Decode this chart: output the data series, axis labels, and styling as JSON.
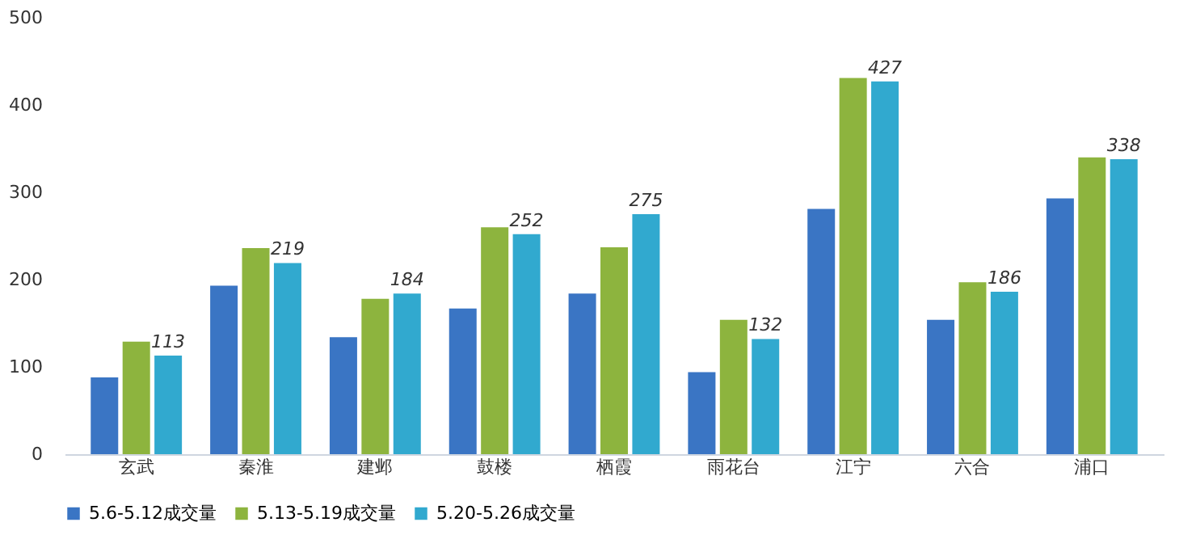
{
  "chart_data": {
    "type": "bar",
    "categories": [
      "玄武",
      "秦淮",
      "建邺",
      "鼓楼",
      "栖霞",
      "雨花台",
      "江宁",
      "六合",
      "浦口"
    ],
    "series": [
      {
        "name": "5.6-5.12成交量",
        "color": "#3a75c4",
        "values": [
          88,
          193,
          134,
          167,
          184,
          94,
          281,
          154,
          293
        ]
      },
      {
        "name": "5.13-5.19成交量",
        "color": "#8db43e",
        "values": [
          129,
          236,
          178,
          260,
          237,
          154,
          431,
          197,
          340
        ]
      },
      {
        "name": "5.20-5.26成交量",
        "color": "#31a9cf",
        "values": [
          113,
          219,
          184,
          252,
          275,
          132,
          427,
          186,
          338
        ],
        "value_labels": [
          "113",
          "219",
          "184",
          "252",
          "275",
          "132",
          "427",
          "186",
          "338"
        ]
      }
    ],
    "ylim": [
      0,
      500
    ],
    "yticks": [
      0,
      100,
      200,
      300,
      400,
      500
    ],
    "grid": false,
    "legend": "bottom"
  }
}
